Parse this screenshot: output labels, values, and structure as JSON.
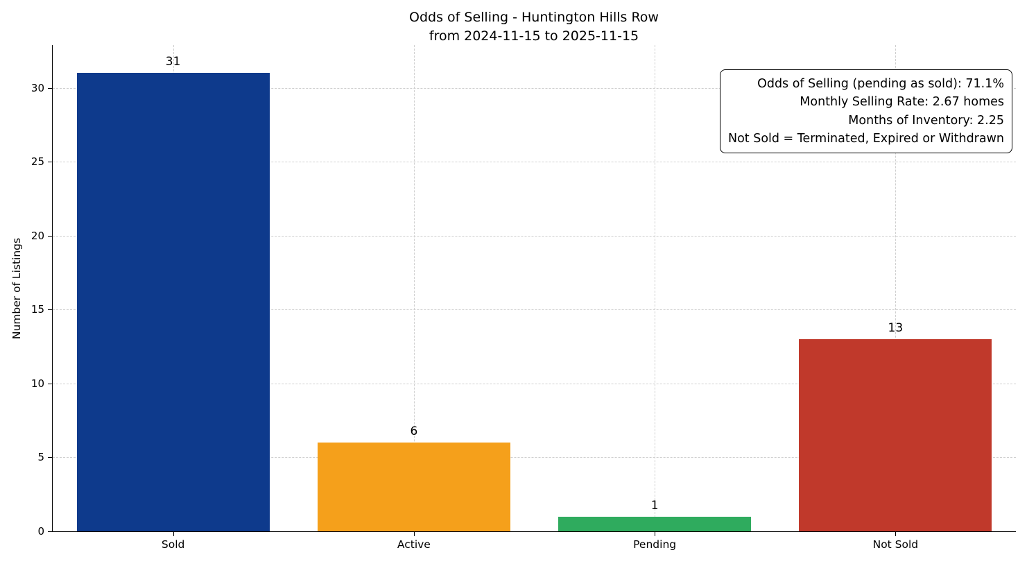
{
  "chart_data": {
    "type": "bar",
    "title": "Odds of Selling - Huntington Hills Row",
    "subtitle": "from 2024-11-15 to 2025-11-15",
    "categories": [
      "Sold",
      "Active",
      "Pending",
      "Not Sold"
    ],
    "values": [
      31,
      6,
      1,
      13
    ],
    "bar_colors": [
      "#0e3a8c",
      "#f5a01b",
      "#2fab5e",
      "#c0392b"
    ],
    "xlabel": "",
    "ylabel": "Number of Listings",
    "ylim": [
      0,
      32.9
    ],
    "yticks": [
      0,
      5,
      10,
      15,
      20,
      25,
      30
    ],
    "grid": "dashed-both-axes",
    "legend": "none",
    "annotation_lines": [
      "Odds of Selling (pending as sold): 71.1%",
      "Monthly Selling Rate: 2.67 homes",
      "Months of Inventory: 2.25",
      "Not Sold = Terminated, Expired or Withdrawn"
    ]
  }
}
